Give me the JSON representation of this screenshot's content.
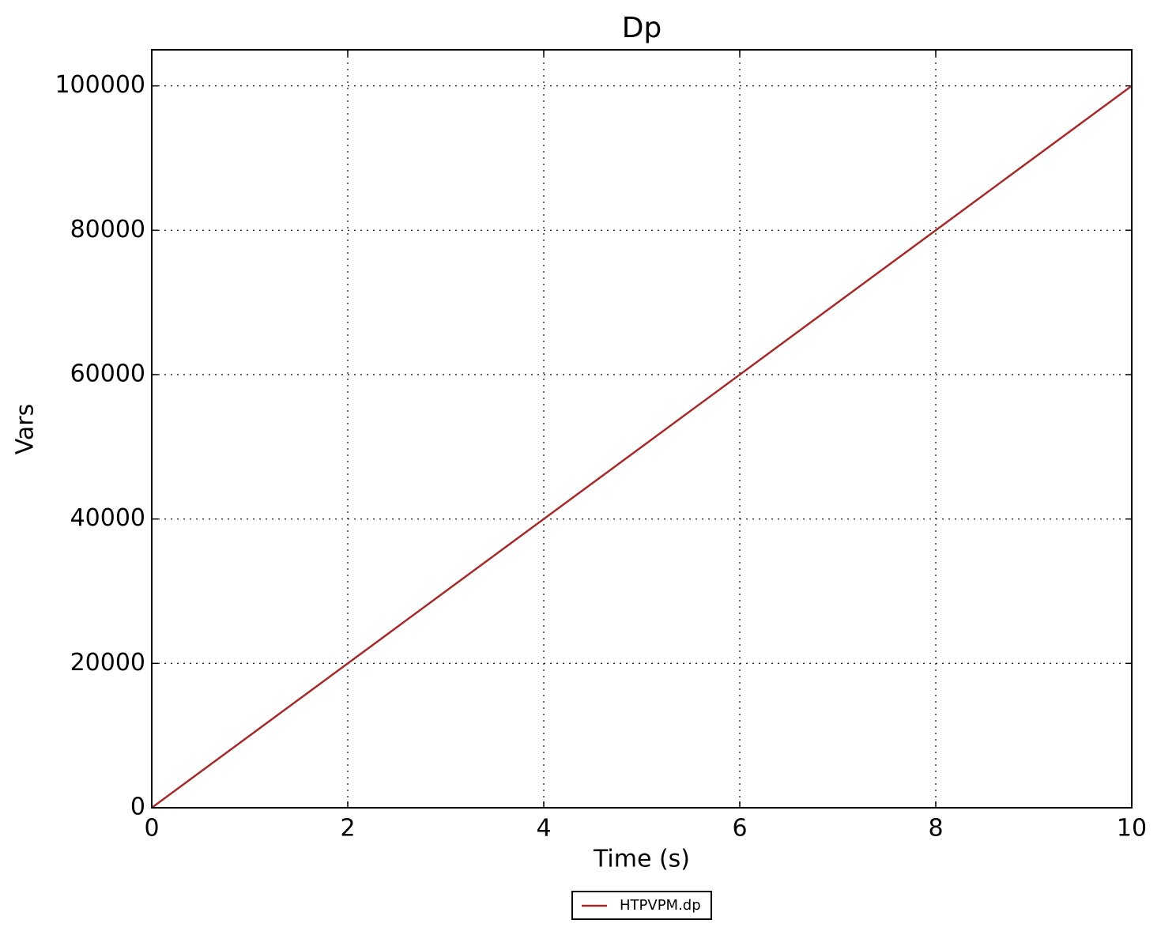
{
  "chart_data": {
    "type": "line",
    "title": "Dp",
    "xlabel": "Time (s)",
    "ylabel": "Vars",
    "x": [
      0,
      10
    ],
    "series": [
      {
        "name": "HTPVPM.dp",
        "color": "#a52a2a",
        "values": [
          0,
          100000
        ]
      }
    ],
    "xlim": [
      0,
      10
    ],
    "xticks": [
      0,
      2,
      4,
      6,
      8,
      10
    ],
    "ylim": [
      0,
      105000
    ],
    "yticks": [
      0,
      20000,
      40000,
      60000,
      80000,
      100000
    ],
    "grid": true,
    "legend": "bottom"
  }
}
